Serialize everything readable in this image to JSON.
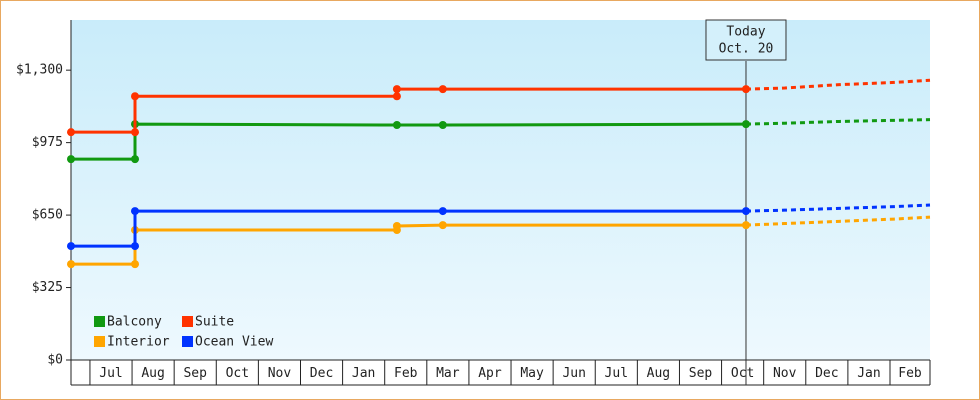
{
  "chart_data": {
    "type": "line",
    "categories": [
      "Jul",
      "Aug",
      "Sep",
      "Oct",
      "Nov",
      "Dec",
      "Jan",
      "Feb",
      "Mar",
      "Apr",
      "May",
      "Jun",
      "Jul",
      "Aug",
      "Sep",
      "Oct",
      "Nov",
      "Dec",
      "Jan",
      "Feb"
    ],
    "xlim": [
      -0.45,
      19.95
    ],
    "ylim": [
      0,
      1525
    ],
    "yticks": [
      {
        "value": 0,
        "label": "$0"
      },
      {
        "value": 325,
        "label": "$325"
      },
      {
        "value": 650,
        "label": "$650"
      },
      {
        "value": 975,
        "label": "$975"
      },
      {
        "value": 1300,
        "label": "$1,300"
      }
    ],
    "annotation": {
      "x": 15.58,
      "lines": [
        "Today",
        "Oct. 20"
      ]
    },
    "legend": "lower left",
    "series": [
      {
        "name": "Balcony",
        "color": "#119911",
        "x": [
          -0.45,
          1.07,
          1.07,
          7.29,
          8.38,
          15.58
        ],
        "values": [
          901,
          901,
          1058,
          1054,
          1054,
          1058
        ],
        "forecast_x": [
          15.58,
          16.5,
          17.8,
          19.1,
          19.95
        ],
        "forecast_values": [
          1058,
          1062,
          1070,
          1075,
          1078
        ]
      },
      {
        "name": "Suite",
        "color": "#ff3300",
        "x": [
          -0.45,
          1.07,
          1.07,
          7.29,
          7.29,
          8.38,
          15.58
        ],
        "values": [
          1022,
          1022,
          1183,
          1183,
          1215,
          1215,
          1215
        ],
        "forecast_x": [
          15.58,
          16.5,
          17.8,
          19.1,
          19.95
        ],
        "forecast_values": [
          1215,
          1220,
          1235,
          1245,
          1255
        ]
      },
      {
        "name": "Interior",
        "color": "#ffa500",
        "x": [
          -0.45,
          1.07,
          1.07,
          7.29,
          7.29,
          8.38,
          15.58
        ],
        "values": [
          430,
          430,
          583,
          583,
          601,
          605,
          605
        ],
        "forecast_x": [
          15.58,
          16.5,
          17.8,
          19.1,
          19.95
        ],
        "forecast_values": [
          605,
          612,
          622,
          632,
          641
        ]
      },
      {
        "name": "Ocean View",
        "color": "#0033ff",
        "x": [
          -0.45,
          1.07,
          1.07,
          8.38,
          15.58
        ],
        "values": [
          511,
          511,
          668,
          668,
          668
        ],
        "forecast_x": [
          15.58,
          16.5,
          17.8,
          19.1,
          19.95
        ],
        "forecast_values": [
          668,
          672,
          680,
          688,
          695
        ]
      }
    ]
  }
}
